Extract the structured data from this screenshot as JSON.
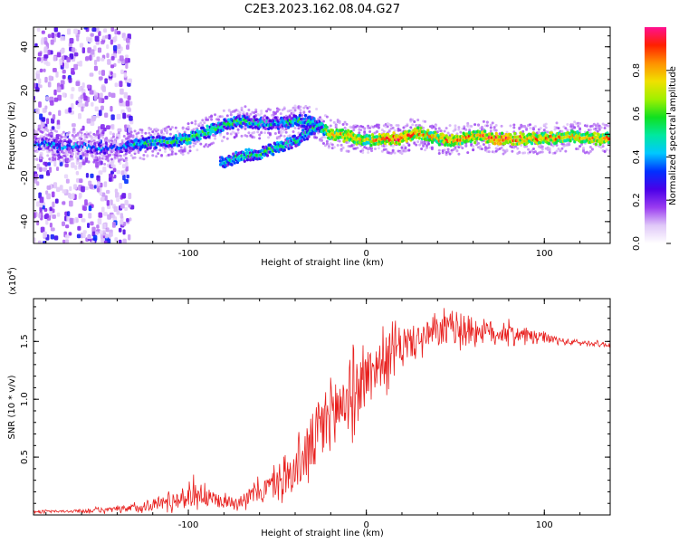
{
  "title": "C2E3.2023.162.08.04.G27",
  "colors": {
    "snr_line": "#e8201e",
    "axis": "#000000",
    "colormap": [
      "#ffffff",
      "#e0c8f8",
      "#9a3cf0",
      "#4a00e8",
      "#0030ff",
      "#00c8ff",
      "#00e8a0",
      "#10e020",
      "#a0f000",
      "#f0e000",
      "#ff9000",
      "#ff2000",
      "#ff1090"
    ]
  },
  "chart_data": [
    {
      "type": "heatmap",
      "name": "spectrogram",
      "xlabel": "Height of straight line (km)",
      "ylabel": "Frequency (Hz)",
      "xlim": [
        -187,
        137
      ],
      "ylim": [
        -50,
        49
      ],
      "xticks": [
        -100,
        0,
        100
      ],
      "yticks": [
        -40,
        -20,
        0,
        20,
        40
      ],
      "xtick_labels": [
        "-100",
        "0",
        "100"
      ],
      "ytick_labels": [
        "-40",
        "-20",
        "0",
        "20",
        "40"
      ],
      "colorbar": {
        "label": "Normalized spectral amplitude",
        "range": [
          0,
          1
        ],
        "ticks": [
          "0.0",
          "0.2",
          "0.4",
          "0.6",
          "0.8"
        ],
        "tick_values": [
          0.0,
          0.2,
          0.4,
          0.6,
          0.8
        ]
      },
      "ridge": [
        {
          "x": -187,
          "y": -5,
          "amp": 0.3
        },
        {
          "x": -180,
          "y": -4,
          "amp": 0.4
        },
        {
          "x": -170,
          "y": -6,
          "amp": 0.35
        },
        {
          "x": -160,
          "y": -5,
          "amp": 0.3
        },
        {
          "x": -150,
          "y": -7,
          "amp": 0.35
        },
        {
          "x": -140,
          "y": -6,
          "amp": 0.3
        },
        {
          "x": -130,
          "y": -5,
          "amp": 0.45
        },
        {
          "x": -120,
          "y": -4,
          "amp": 0.5
        },
        {
          "x": -110,
          "y": -3,
          "amp": 0.5
        },
        {
          "x": -100,
          "y": -2,
          "amp": 0.55
        },
        {
          "x": -90,
          "y": 1,
          "amp": 0.55
        },
        {
          "x": -80,
          "y": 4,
          "amp": 0.5
        },
        {
          "x": -70,
          "y": 6,
          "amp": 0.5
        },
        {
          "x": -60,
          "y": 5,
          "amp": 0.45
        },
        {
          "x": -50,
          "y": 5,
          "amp": 0.45
        },
        {
          "x": -40,
          "y": 6,
          "amp": 0.5
        },
        {
          "x": -30,
          "y": 6,
          "amp": 0.45
        },
        {
          "x": -20,
          "y": 0,
          "amp": 0.75
        },
        {
          "x": -10,
          "y": -1,
          "amp": 0.8
        },
        {
          "x": 0,
          "y": -3,
          "amp": 0.7
        },
        {
          "x": 10,
          "y": -2,
          "amp": 0.85
        },
        {
          "x": 20,
          "y": -2,
          "amp": 0.9
        },
        {
          "x": 28,
          "y": 1,
          "amp": 0.8
        },
        {
          "x": 35,
          "y": -1,
          "amp": 0.75
        },
        {
          "x": 45,
          "y": -3,
          "amp": 0.85
        },
        {
          "x": 55,
          "y": -2,
          "amp": 0.8
        },
        {
          "x": 65,
          "y": -1,
          "amp": 0.85
        },
        {
          "x": 75,
          "y": -2,
          "amp": 0.9
        },
        {
          "x": 85,
          "y": -2,
          "amp": 0.85
        },
        {
          "x": 95,
          "y": -2,
          "amp": 0.8
        },
        {
          "x": 105,
          "y": -2,
          "amp": 0.8
        },
        {
          "x": 115,
          "y": -1,
          "amp": 0.75
        },
        {
          "x": 125,
          "y": -2,
          "amp": 0.8
        },
        {
          "x": 137,
          "y": -2,
          "amp": 0.8
        }
      ],
      "secondary_branch": [
        {
          "x": -82,
          "y": -13,
          "amp": 0.45
        },
        {
          "x": -70,
          "y": -10,
          "amp": 0.5
        },
        {
          "x": -60,
          "y": -9,
          "amp": 0.5
        },
        {
          "x": -50,
          "y": -6,
          "amp": 0.5
        },
        {
          "x": -40,
          "y": -3,
          "amp": 0.45
        },
        {
          "x": -30,
          "y": 2,
          "amp": 0.5
        },
        {
          "x": -25,
          "y": 5,
          "amp": 0.4
        }
      ],
      "noise_band_x": [
        -187,
        -132
      ]
    },
    {
      "type": "line",
      "name": "snr",
      "xlabel": "Height of straight line (km)",
      "ylabel": "SNR (10 * v/v)",
      "y_multiplier_label": "(x10",
      "y_multiplier_exp": "4",
      "y_multiplier_close": ")",
      "xlim": [
        -187,
        137
      ],
      "ylim": [
        0,
        1.87
      ],
      "xticks": [
        -100,
        0,
        100
      ],
      "yticks": [
        0.5,
        1.0,
        1.5
      ],
      "xtick_labels": [
        "-100",
        "0",
        "100"
      ],
      "ytick_labels": [
        "0.5",
        "1.0",
        "1.5"
      ],
      "series": [
        {
          "name": "SNR",
          "x": [
            -187,
            -170,
            -150,
            -135,
            -120,
            -110,
            -100,
            -95,
            -90,
            -80,
            -70,
            -60,
            -50,
            -40,
            -35,
            -30,
            -25,
            -20,
            -15,
            -10,
            -5,
            0,
            5,
            10,
            15,
            20,
            30,
            40,
            50,
            60,
            70,
            80,
            90,
            100,
            110,
            120,
            137
          ],
          "y": [
            0.03,
            0.03,
            0.04,
            0.05,
            0.09,
            0.12,
            0.16,
            0.2,
            0.15,
            0.11,
            0.13,
            0.2,
            0.28,
            0.38,
            0.5,
            0.62,
            0.76,
            0.88,
            0.95,
            1.0,
            1.1,
            1.22,
            1.28,
            1.33,
            1.38,
            1.47,
            1.52,
            1.58,
            1.62,
            1.6,
            1.58,
            1.57,
            1.55,
            1.53,
            1.5,
            1.49,
            1.47
          ],
          "noise": [
            0.01,
            0.01,
            0.02,
            0.03,
            0.05,
            0.07,
            0.09,
            0.12,
            0.08,
            0.05,
            0.06,
            0.09,
            0.13,
            0.17,
            0.22,
            0.27,
            0.3,
            0.32,
            0.3,
            0.28,
            0.26,
            0.22,
            0.2,
            0.2,
            0.22,
            0.16,
            0.12,
            0.13,
            0.14,
            0.12,
            0.1,
            0.08,
            0.06,
            0.04,
            0.03,
            0.02,
            0.02
          ]
        }
      ]
    }
  ]
}
